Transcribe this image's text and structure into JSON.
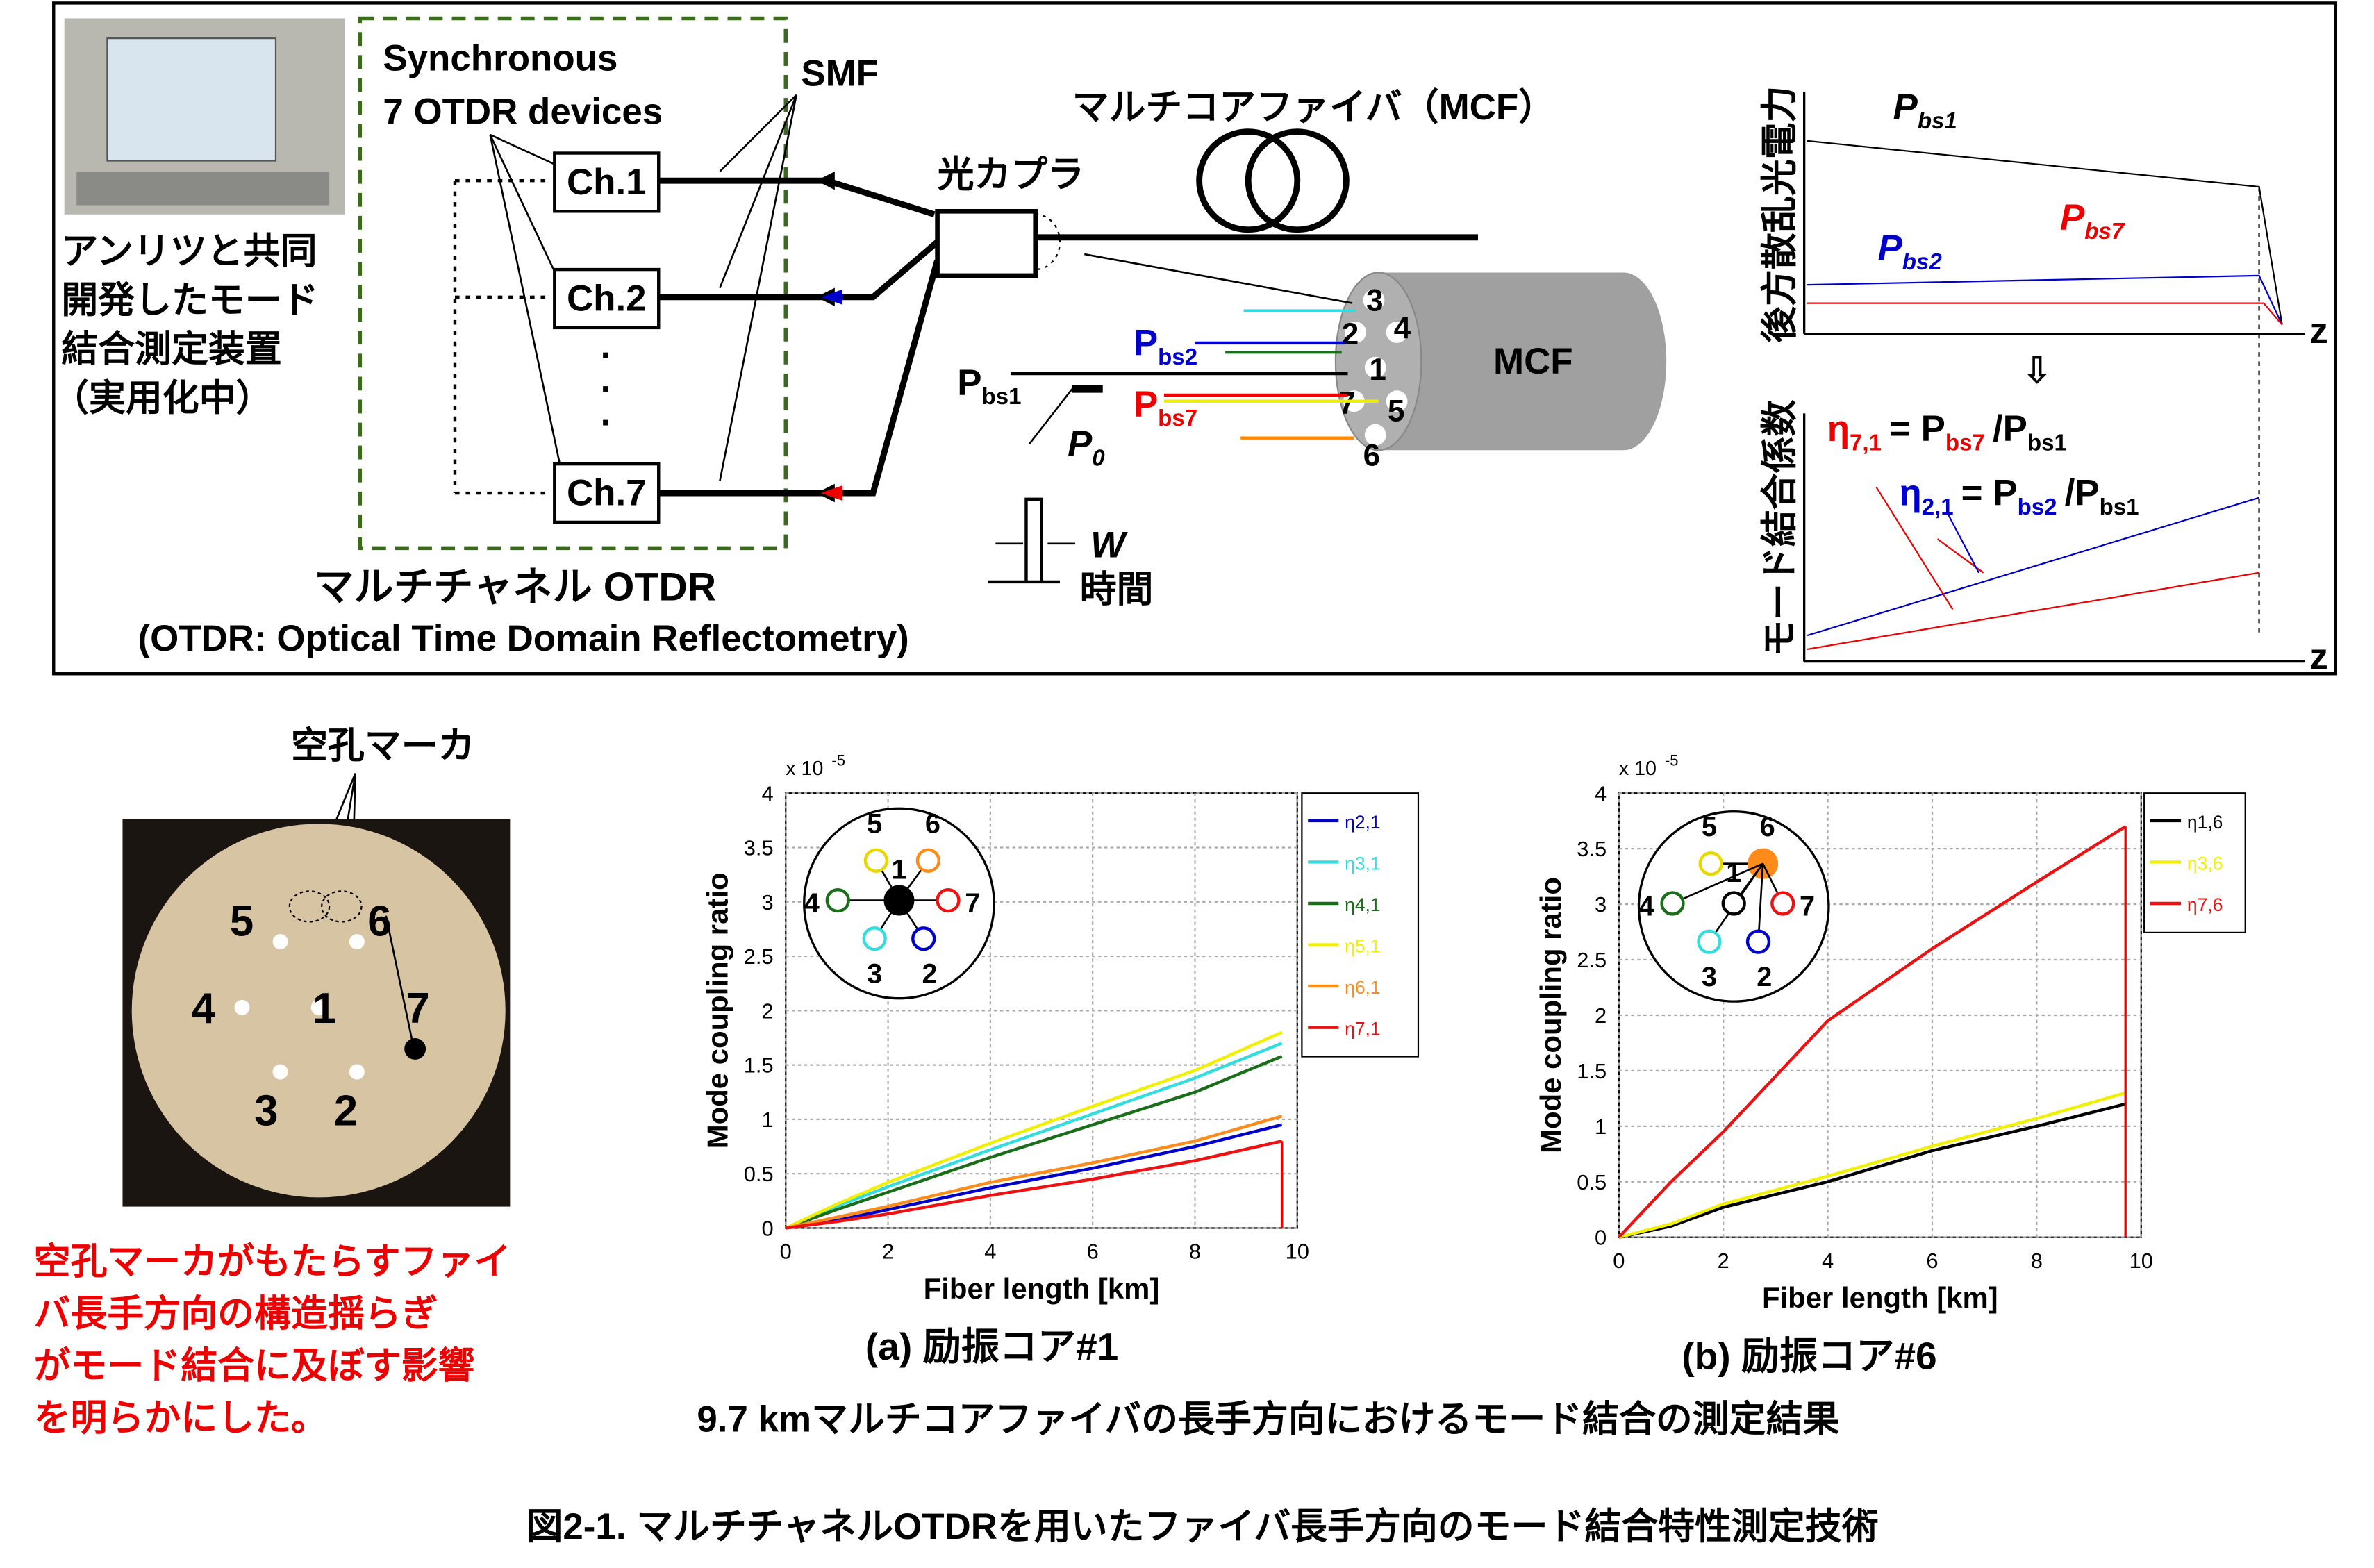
{
  "diagram": {
    "equipment": [
      "アンリツと共同",
      "開発したモード",
      "結合測定装置",
      "（実用化中）"
    ],
    "sync": [
      "Synchronous",
      "7 OTDR devices"
    ],
    "smf": "SMF",
    "channels": [
      "Ch.1",
      "Ch.2",
      "Ch.7"
    ],
    "dots": "·",
    "mcf_title": "マルチコアファイバ（MCF）",
    "coupler": "光カプラ",
    "mcf": "MCF",
    "otdr": "マルチチャネル OTDR",
    "otdr_full": "(OTDR: Optical Time Domain Reflectometry)",
    "p": "P",
    "bs1": "bs1",
    "bs2": "bs2",
    "bs7": "bs7",
    "p0_sub": "0",
    "w": "W",
    "time": "時間",
    "cores": [
      "3",
      "2",
      "4",
      "1",
      "7",
      "5",
      "6"
    ],
    "backscatter": "後方散乱光電力",
    "coupling_coef": "モード結合係数",
    "z": "z",
    "arrow": "⇩",
    "eq1": [
      "η",
      "7,1",
      "= P",
      "bs7",
      "/P",
      "bs1"
    ],
    "eq2": [
      "η",
      "2,1",
      "= P",
      "bs2",
      "/P",
      "bs1"
    ]
  },
  "photo": {
    "marker": "空孔マーカ",
    "cores": [
      "5",
      "6",
      "4",
      "1",
      "7",
      "3",
      "2"
    ]
  },
  "note": [
    "空孔マーカがもたらすファイ",
    "バ長手方向の構造揺らぎ",
    "がモード結合に及ぼす影響",
    "を明らかにした。"
  ],
  "chart_data": [
    {
      "type": "line",
      "caption": "(a) 励振コア#1",
      "xlabel": "Fiber length [km]",
      "ylabel": "Mode coupling ratio",
      "multiplier": "x 10",
      "exponent": "-5",
      "xlim": [
        0,
        10
      ],
      "ylim": [
        0,
        4
      ],
      "xticks": [
        0,
        2,
        4,
        6,
        8,
        10
      ],
      "yticks": [
        0,
        0.5,
        1,
        1.5,
        2,
        2.5,
        3,
        3.5,
        4
      ],
      "grid": true,
      "x": [
        0,
        1,
        2,
        4,
        6,
        8,
        9.7
      ],
      "series": [
        {
          "name": "η2,1",
          "color": "#0000cc",
          "values": [
            0,
            0.07,
            0.17,
            0.37,
            0.55,
            0.75,
            0.95
          ]
        },
        {
          "name": "η3,1",
          "color": "#33dddd",
          "values": [
            0,
            0.2,
            0.38,
            0.72,
            1.05,
            1.38,
            1.7
          ]
        },
        {
          "name": "η4,1",
          "color": "#1a6e1a",
          "values": [
            0,
            0.17,
            0.33,
            0.65,
            0.95,
            1.25,
            1.58
          ]
        },
        {
          "name": "η5,1",
          "color": "#f0f000",
          "values": [
            0,
            0.22,
            0.42,
            0.78,
            1.12,
            1.45,
            1.8
          ]
        },
        {
          "name": "η6,1",
          "color": "#ff8c1a",
          "values": [
            0,
            0.1,
            0.2,
            0.42,
            0.6,
            0.8,
            1.03
          ]
        },
        {
          "name": "η7,1",
          "color": "#ee1111",
          "values": [
            0,
            0.06,
            0.13,
            0.3,
            0.45,
            0.62,
            0.8
          ]
        }
      ],
      "inset": [
        {
          "label": "5",
          "color": "#e8d800"
        },
        {
          "label": "6",
          "color": "#ff8c1a"
        },
        {
          "label": "4",
          "color": "#1a6e1a"
        },
        {
          "label": "7",
          "color": "#ee1111"
        },
        {
          "label": "3",
          "color": "#33dddd"
        },
        {
          "label": "2",
          "color": "#0000cc"
        },
        {
          "label": "1",
          "color": "#000000",
          "filled": true
        }
      ]
    },
    {
      "type": "line",
      "caption": "(b) 励振コア#6",
      "xlabel": "Fiber length [km]",
      "ylabel": "Mode coupling ratio",
      "multiplier": "x 10",
      "exponent": "-5",
      "xlim": [
        0,
        10
      ],
      "ylim": [
        0,
        4
      ],
      "xticks": [
        0,
        2,
        4,
        6,
        8,
        10
      ],
      "yticks": [
        0,
        0.5,
        1,
        1.5,
        2,
        2.5,
        3,
        3.5,
        4
      ],
      "grid": true,
      "x": [
        0,
        1,
        2,
        4,
        6,
        8,
        9.7
      ],
      "series": [
        {
          "name": "η1,6",
          "color": "#000000",
          "values": [
            0,
            0.1,
            0.27,
            0.5,
            0.78,
            1.0,
            1.2
          ]
        },
        {
          "name": "η3,6",
          "color": "#f0f000",
          "values": [
            0,
            0.12,
            0.3,
            0.55,
            0.82,
            1.07,
            1.3
          ]
        },
        {
          "name": "η7,6",
          "color": "#ee1111",
          "values": [
            0,
            0.5,
            0.95,
            1.95,
            2.6,
            3.2,
            3.7
          ]
        }
      ],
      "inset": [
        {
          "label": "5",
          "color": "#e8d800"
        },
        {
          "label": "6",
          "color": "#ff8c1a",
          "filled": true
        },
        {
          "label": "4",
          "color": "#1a6e1a"
        },
        {
          "label": "7",
          "color": "#ee1111"
        },
        {
          "label": "3",
          "color": "#33dddd"
        },
        {
          "label": "2",
          "color": "#0000cc"
        },
        {
          "label": "1",
          "color": "#000000"
        }
      ]
    }
  ],
  "subtitle": "9.7 kmマルチコアファイバの長手方向におけるモード結合の測定結果",
  "caption": "図2-1.  マルチチャネルOTDRを用いたファイバ長手方向のモード結合特性測定技術"
}
